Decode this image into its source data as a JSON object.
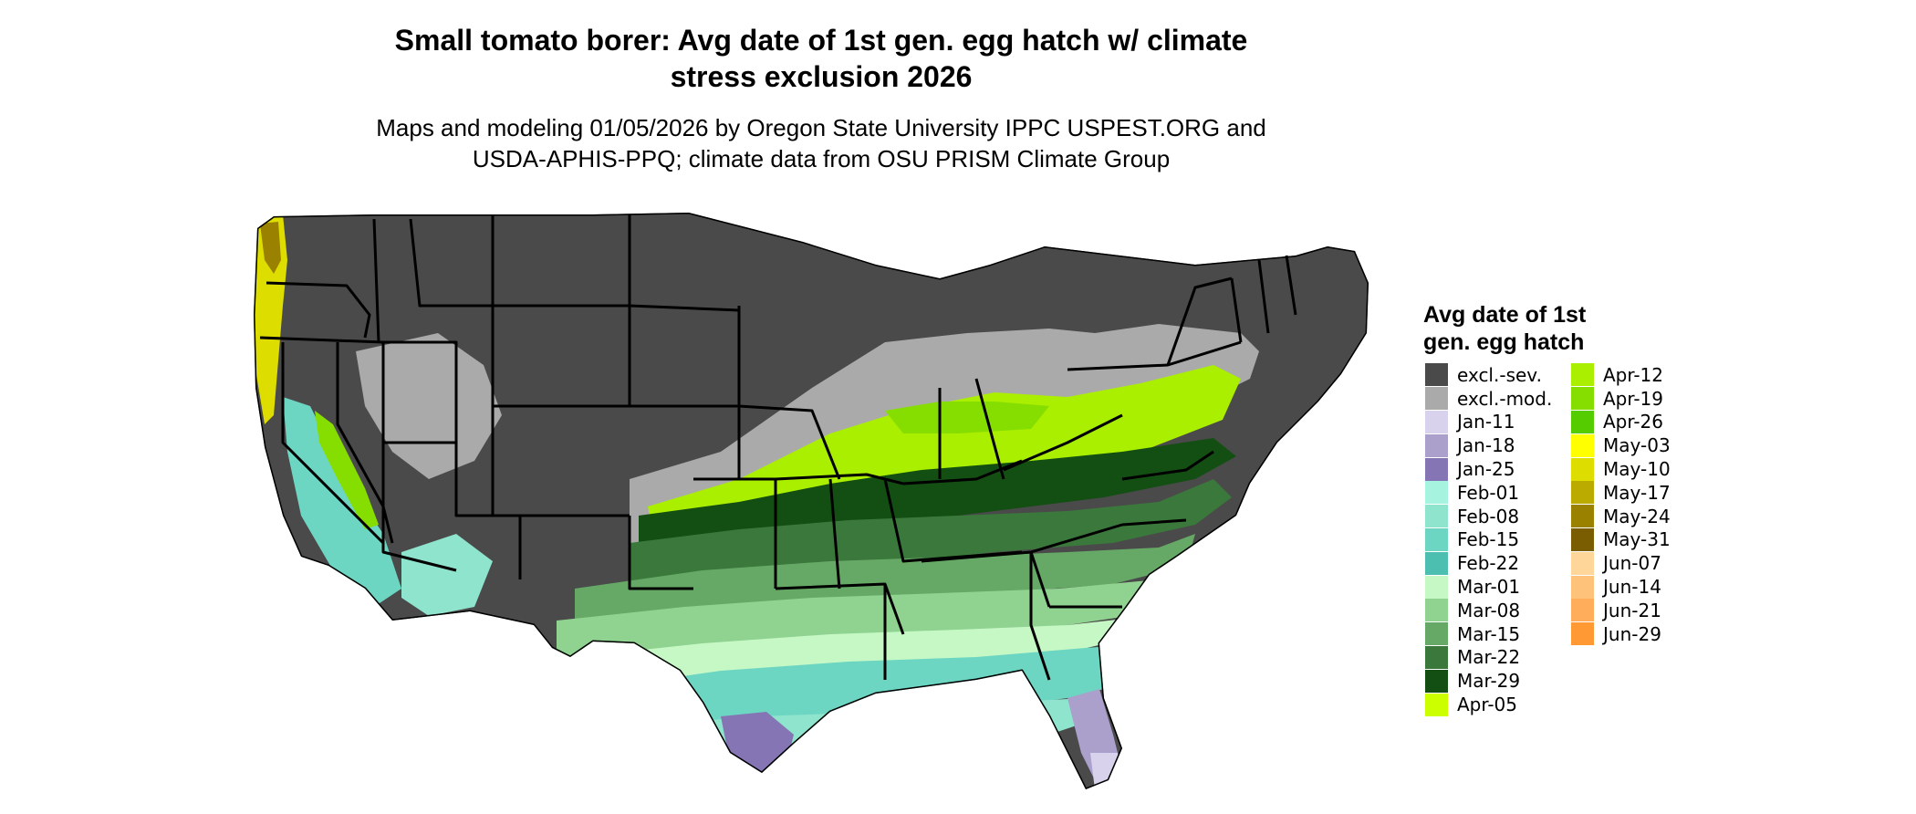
{
  "header": {
    "title_line1": "Small tomato borer: Avg date of 1st gen. egg hatch w/ climate",
    "title_line2": "stress exclusion 2026",
    "subtitle_line1": "Maps and modeling 01/05/2026 by Oregon State University IPPC USPEST.ORG and",
    "subtitle_line2": "USDA-APHIS-PPQ; climate data from OSU PRISM Climate Group"
  },
  "legend": {
    "title_line1": "Avg date of 1st",
    "title_line2": "gen. egg hatch",
    "column1": [
      {
        "label": "excl.-sev.",
        "color": "#4a4a4a"
      },
      {
        "label": "excl.-mod.",
        "color": "#aaaaaa"
      },
      {
        "label": "Jan-11",
        "color": "#d9d2ec"
      },
      {
        "label": "Jan-18",
        "color": "#ab9fcc"
      },
      {
        "label": "Jan-25",
        "color": "#8575b4"
      },
      {
        "label": "Feb-01",
        "color": "#a6f3df"
      },
      {
        "label": "Feb-08",
        "color": "#8ee4cc"
      },
      {
        "label": "Feb-15",
        "color": "#6dd6c2"
      },
      {
        "label": "Feb-22",
        "color": "#4dbfb0"
      },
      {
        "label": "Mar-01",
        "color": "#c6f8c6"
      },
      {
        "label": "Mar-08",
        "color": "#90d290"
      },
      {
        "label": "Mar-15",
        "color": "#66a966"
      },
      {
        "label": "Mar-22",
        "color": "#3b783b"
      },
      {
        "label": "Mar-29",
        "color": "#134e13"
      },
      {
        "label": "Apr-05",
        "color": "#ccff00"
      }
    ],
    "column2": [
      {
        "label": "Apr-12",
        "color": "#aaee00"
      },
      {
        "label": "Apr-19",
        "color": "#86dd00"
      },
      {
        "label": "Apr-26",
        "color": "#55cc00"
      },
      {
        "label": "May-03",
        "color": "#ffff00"
      },
      {
        "label": "May-10",
        "color": "#dddd00"
      },
      {
        "label": "May-17",
        "color": "#bbaa00"
      },
      {
        "label": "May-24",
        "color": "#9a8100"
      },
      {
        "label": "May-31",
        "color": "#7a5d00"
      },
      {
        "label": "Jun-07",
        "color": "#ffd699"
      },
      {
        "label": "Jun-14",
        "color": "#ffc27a"
      },
      {
        "label": "Jun-21",
        "color": "#ffad5a"
      },
      {
        "label": "Jun-29",
        "color": "#ff9933"
      }
    ]
  }
}
